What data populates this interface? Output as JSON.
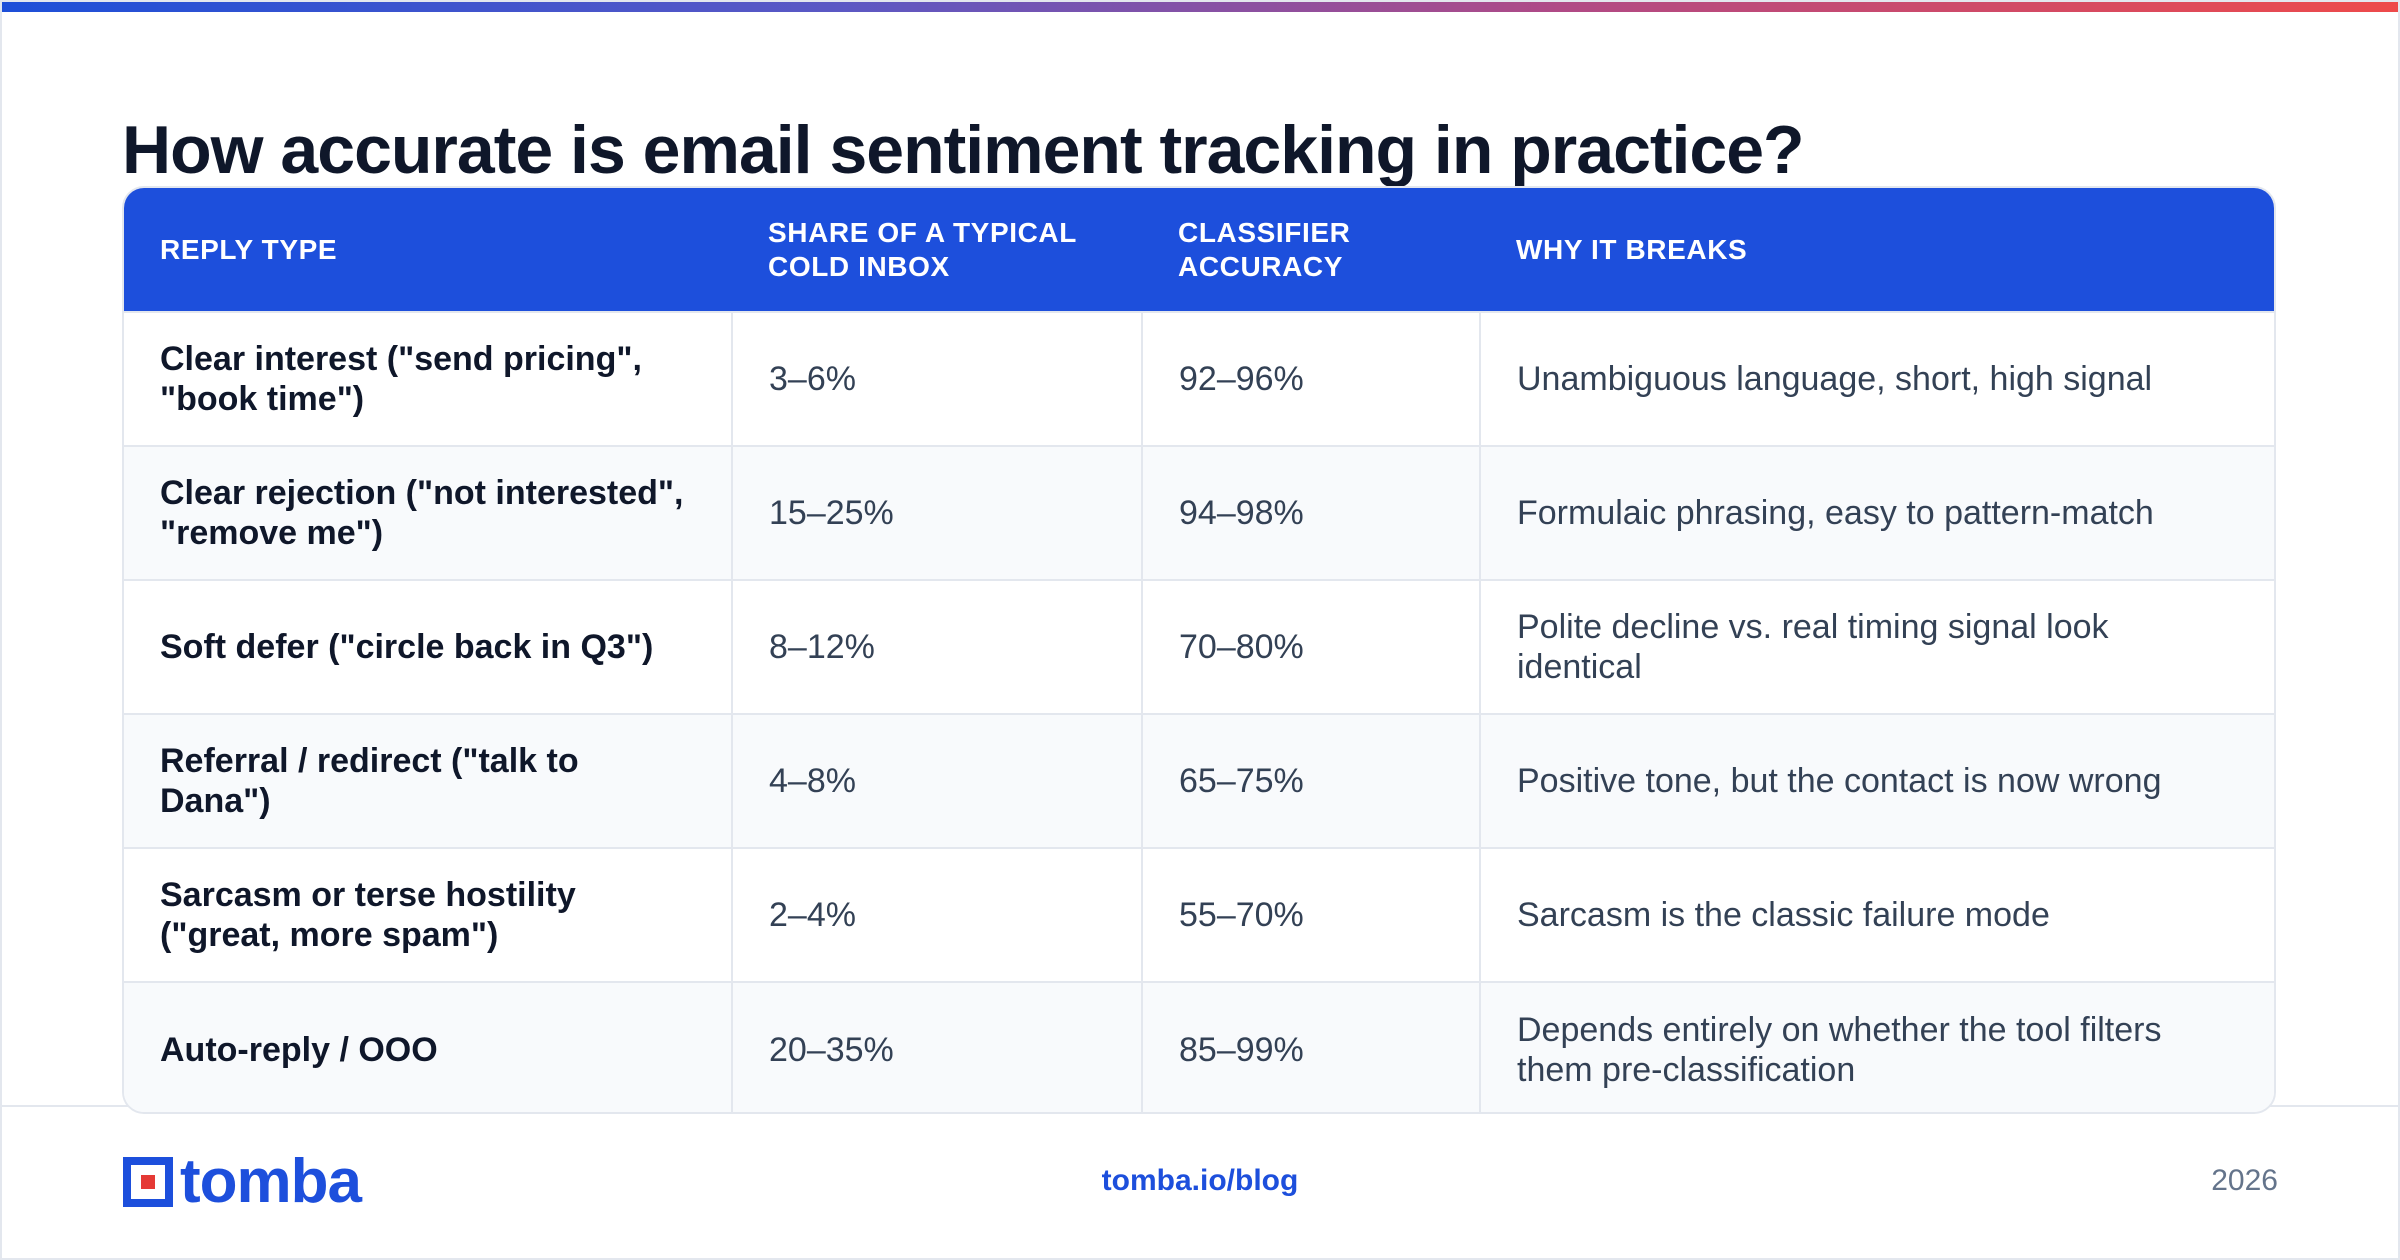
{
  "title": "How accurate is email sentiment tracking in practice?",
  "table": {
    "headers": [
      "REPLY TYPE",
      "SHARE OF A TYPICAL COLD INBOX",
      "CLASSIFIER ACCURACY",
      "WHY IT BREAKS"
    ],
    "rows": [
      {
        "type": "Clear interest (\"send pricing\", \"book time\")",
        "share": "3–6%",
        "accuracy": "92–96%",
        "why": "Unambiguous language, short, high signal"
      },
      {
        "type": "Clear rejection (\"not interested\", \"remove me\")",
        "share": "15–25%",
        "accuracy": "94–98%",
        "why": "Formulaic phrasing, easy to pattern-match"
      },
      {
        "type": "Soft defer (\"circle back in Q3\")",
        "share": "8–12%",
        "accuracy": "70–80%",
        "why": "Polite decline vs. real timing signal look identical"
      },
      {
        "type": "Referral / redirect (\"talk to Dana\")",
        "share": "4–8%",
        "accuracy": "65–75%",
        "why": "Positive tone, but the contact is now wrong"
      },
      {
        "type": "Sarcasm or terse hostility (\"great, more spam\")",
        "share": "2–4%",
        "accuracy": "55–70%",
        "why": "Sarcasm is the classic failure mode"
      },
      {
        "type": "Auto-reply / OOO",
        "share": "20–35%",
        "accuracy": "85–99%",
        "why": "Depends entirely on whether the tool filters them pre-classification"
      }
    ]
  },
  "footer": {
    "logo_text": "tomba",
    "link": "tomba.io/blog",
    "year": "2026"
  },
  "colors": {
    "accent": "#1d4fdc",
    "title": "#0f172a",
    "body_text": "#334155",
    "border": "#e3e7ee"
  },
  "icons": {
    "logo": "tomba-square-logo-icon"
  }
}
